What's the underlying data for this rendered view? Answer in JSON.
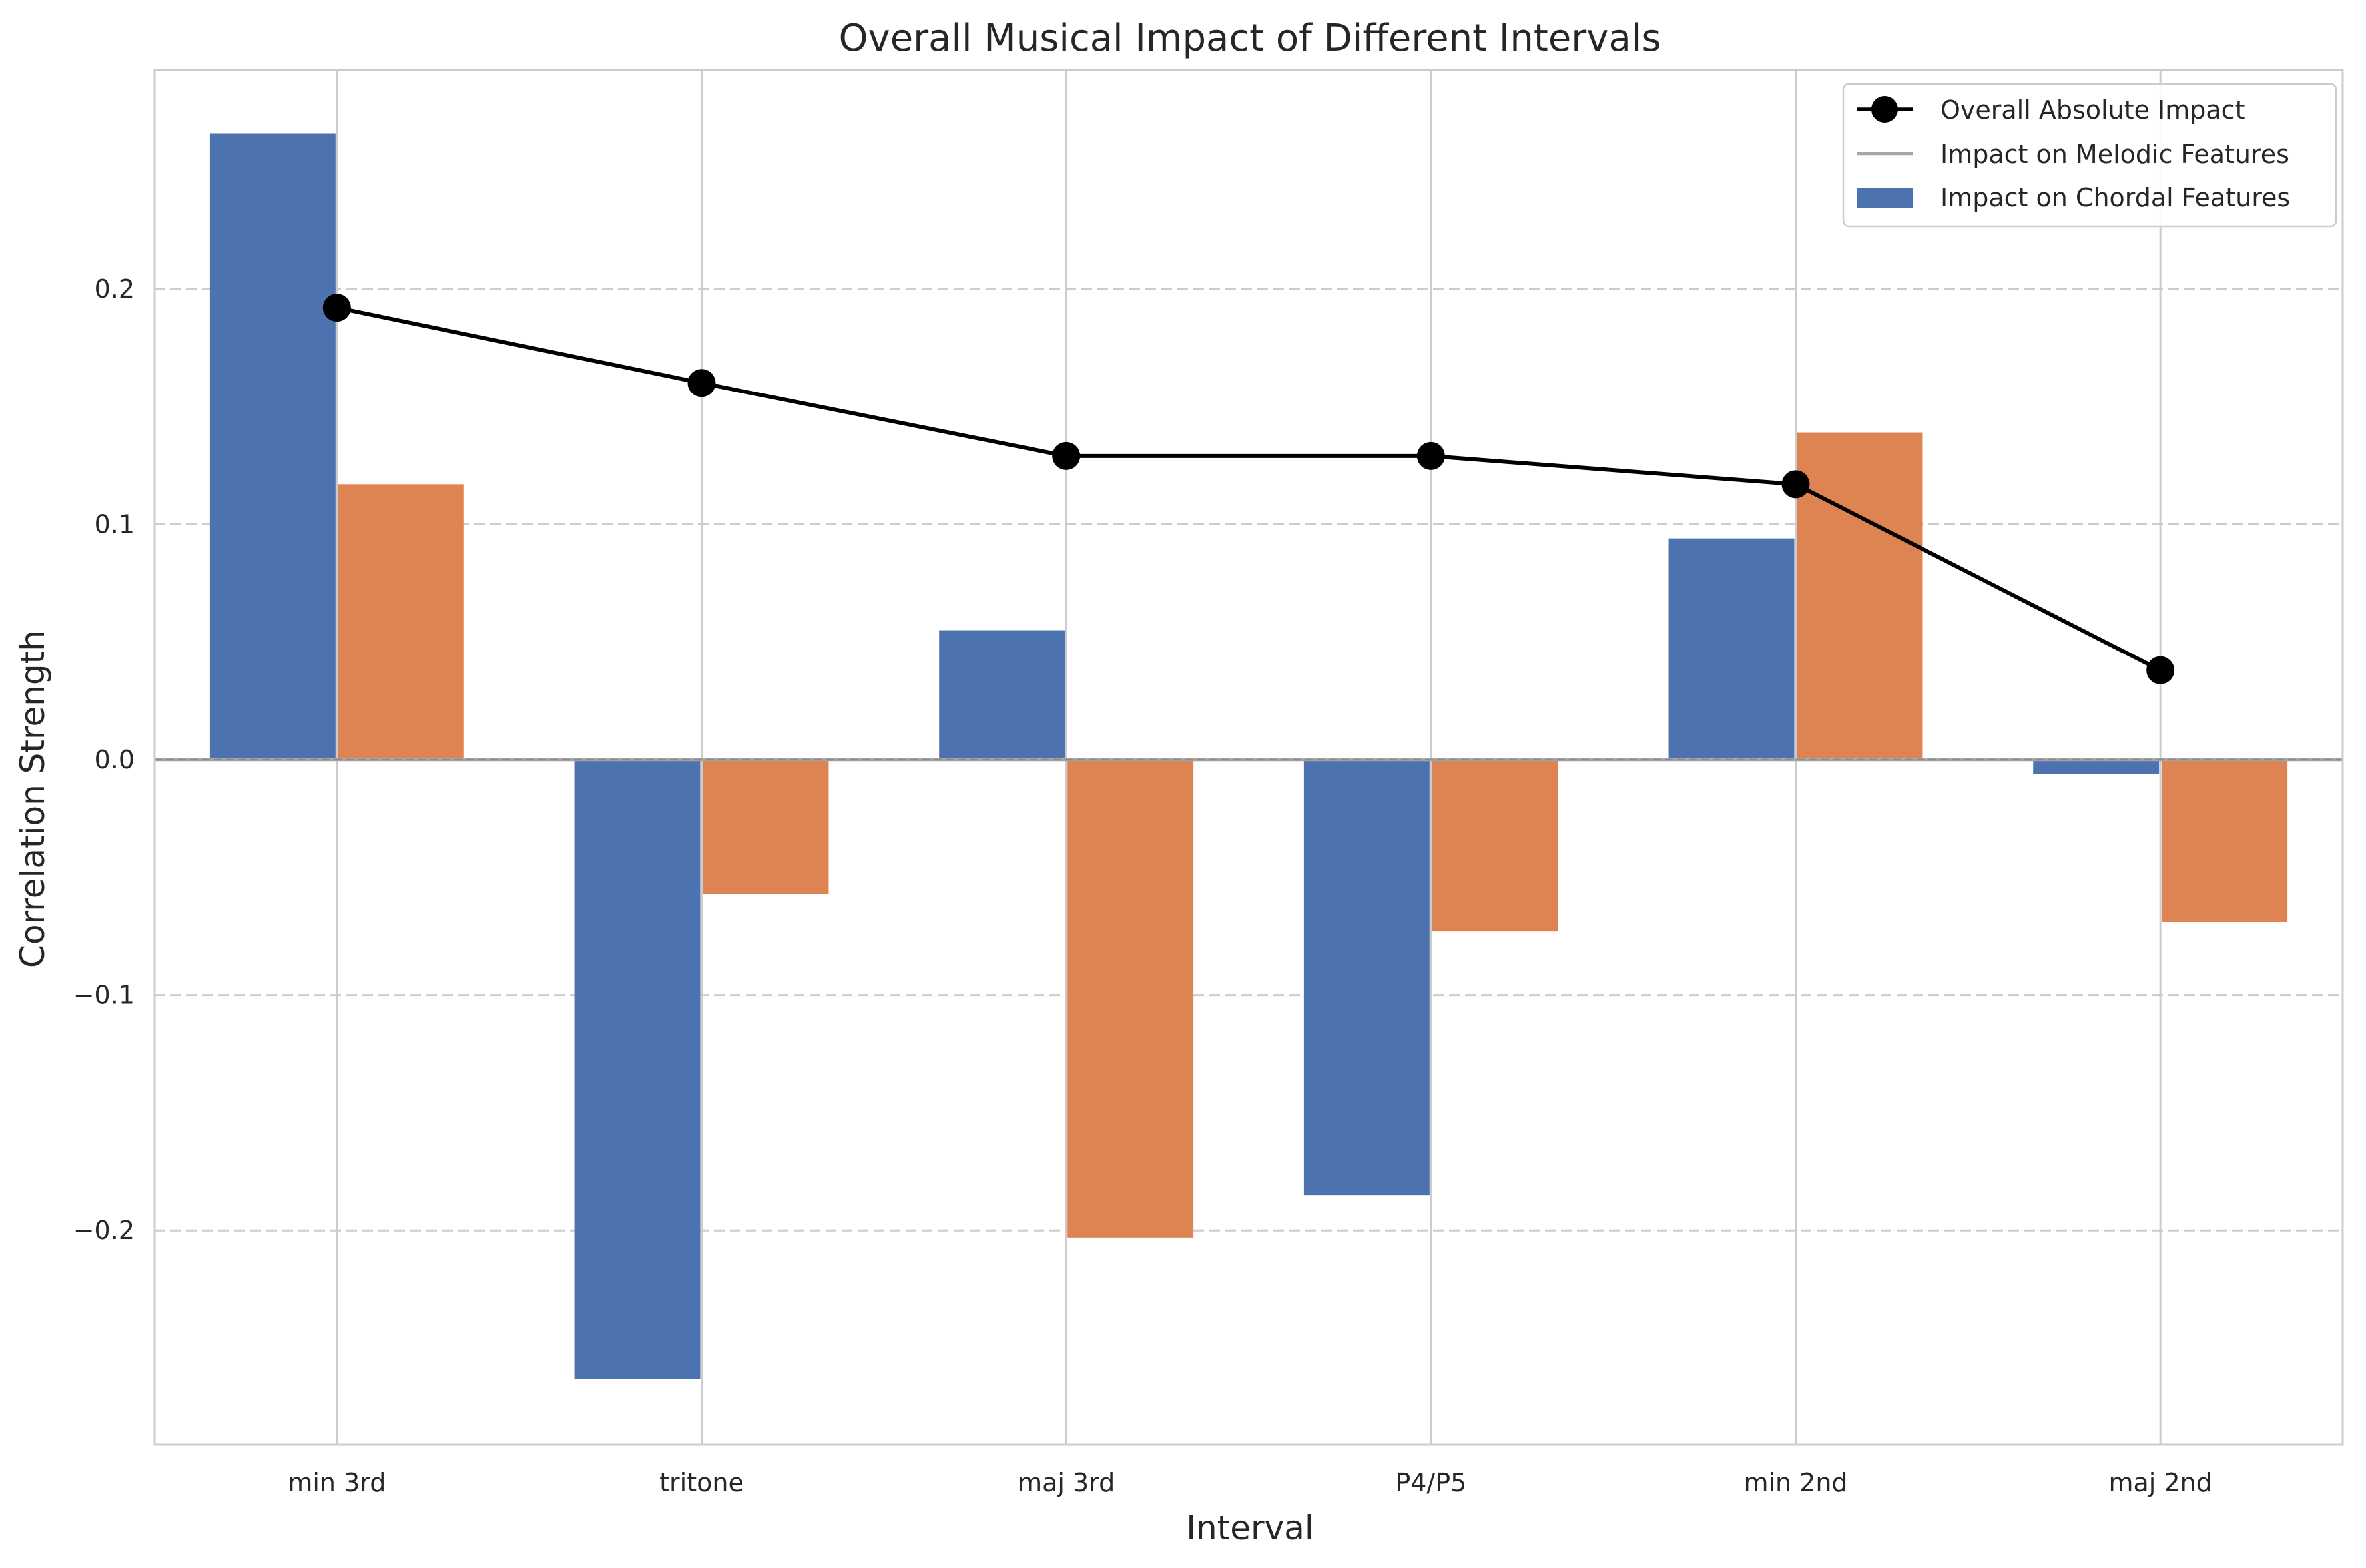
{
  "chart_data": {
    "type": "bar",
    "title": "Overall Musical Impact of Different Intervals",
    "xlabel": "Interval",
    "ylabel": "Correlation Strength",
    "categories": [
      "min 3rd",
      "tritone",
      "maj 3rd",
      "P4/P5",
      "min 2nd",
      "maj 2nd"
    ],
    "series": [
      {
        "name": "Impact on Chordal Features",
        "kind": "bar",
        "color": "#4c72b0",
        "values": [
          0.266,
          -0.263,
          0.055,
          -0.185,
          0.094,
          -0.006
        ]
      },
      {
        "name": "",
        "kind": "bar",
        "color": "#dd8452",
        "values": [
          0.117,
          -0.057,
          -0.203,
          -0.073,
          0.139,
          -0.069
        ]
      },
      {
        "name": "Overall Absolute Impact",
        "kind": "line",
        "color": "#000000",
        "marker": "circle",
        "values": [
          0.192,
          0.16,
          0.129,
          0.129,
          0.117,
          0.038
        ]
      }
    ],
    "reference_line": {
      "name": "Impact on Melodic Features",
      "value": 0.0,
      "color": "#a6a6a6"
    },
    "yticks": [
      -0.2,
      -0.1,
      0.0,
      0.1,
      0.2
    ],
    "ytick_labels": [
      "−0.2",
      "−0.1",
      "0.0",
      "0.1",
      "0.2"
    ],
    "ylim": [
      -0.291,
      0.293
    ],
    "grid": {
      "x": "solid",
      "y": "dashed"
    },
    "legend": {
      "placement": "top-right",
      "entries": [
        {
          "label": "Overall Absolute Impact",
          "kind": "line-marker",
          "color": "#000000"
        },
        {
          "label": "Impact on Melodic Features",
          "kind": "line",
          "color": "#a6a6a6"
        },
        {
          "label": "Impact on Chordal Features",
          "kind": "patch",
          "color": "#4c72b0"
        }
      ]
    }
  }
}
